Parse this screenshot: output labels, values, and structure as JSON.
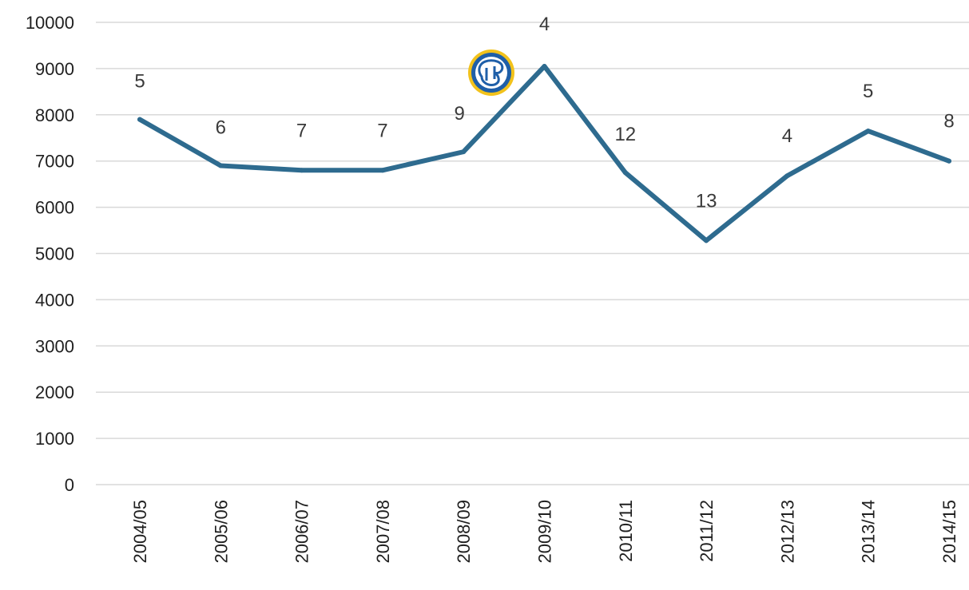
{
  "chart_data": {
    "type": "line",
    "title": "",
    "xlabel": "",
    "ylabel": "",
    "ylim": [
      0,
      10000
    ],
    "yticks": [
      "0",
      "1000",
      "2000",
      "3000",
      "4000",
      "5000",
      "6000",
      "7000",
      "8000",
      "9000",
      "10000"
    ],
    "categories": [
      "2004/05",
      "2005/06",
      "2006/07",
      "2007/08",
      "2008/09",
      "2009/10",
      "2010/11",
      "2011/12",
      "2012/13",
      "2013/14",
      "2014/15"
    ],
    "series": [
      {
        "values": [
          7900,
          6900,
          6800,
          6800,
          7200,
          9050,
          6750,
          5280,
          6680,
          7650,
          7000
        ],
        "data_labels": [
          "5",
          "6",
          "7",
          "7",
          "9",
          "4",
          "12",
          "13",
          "4",
          "5",
          "8"
        ],
        "color": "#2e6b8f"
      }
    ],
    "grid": true,
    "legend": "none",
    "logo": "club-crest-icon"
  }
}
